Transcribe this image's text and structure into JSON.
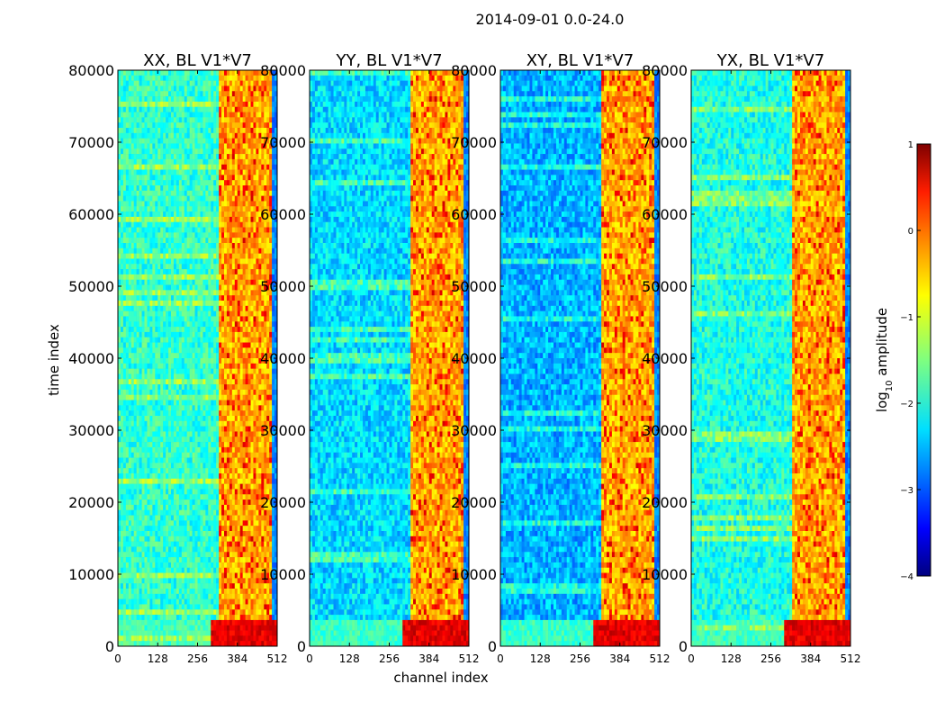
{
  "figure": {
    "suptitle": "2014-09-01 0.0-24.0",
    "xlabel": "channel index",
    "ylabel": "time index"
  },
  "chart_data": {
    "type": "heatmap",
    "title": "2014-09-01 0.0-24.0",
    "xlabel": "channel index",
    "ylabel": "time index",
    "xlim": [
      0,
      512
    ],
    "ylim": [
      0,
      80000
    ],
    "x_ticks": [
      0,
      128,
      256,
      384,
      512
    ],
    "y_ticks": [
      0,
      10000,
      20000,
      30000,
      40000,
      50000,
      60000,
      70000,
      80000
    ],
    "panels": [
      {
        "title": "XX, BL V1*V7",
        "level": 0.42
      },
      {
        "title": "YY, BL V1*V7",
        "level": 0.34
      },
      {
        "title": "XY, BL V1*V7",
        "level": 0.3
      },
      {
        "title": "YX, BL V1*V7",
        "level": 0.4
      }
    ],
    "bright_band_channels": [
      325,
      512
    ],
    "colorbar": {
      "label_prefix": "log",
      "label_sub": "10",
      "label_suffix": " amplitude",
      "range": [
        -4,
        1
      ],
      "ticks": [
        1,
        0,
        -1,
        -2,
        -3,
        -4
      ],
      "tick_labels": [
        "1",
        "0",
        "−1",
        "−2",
        "−3",
        "−4"
      ],
      "colormap": "jet"
    }
  }
}
